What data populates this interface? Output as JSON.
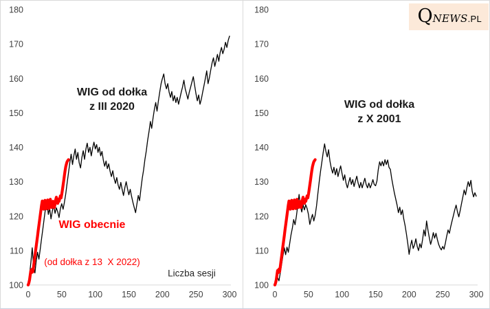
{
  "logo": {
    "q": "Q",
    "news": "NEWS",
    "pl": ".PL",
    "bg_color": "#fce9d9"
  },
  "colors": {
    "black_line": "#000000",
    "red_line": "#ff0000",
    "axis_line": "#d9d9d9",
    "tick_label": "#404040",
    "title_text": "#1a1a1a",
    "red_text": "#ff0000",
    "xaxis_label_text": "#262626"
  },
  "chart_data": [
    {
      "type": "line",
      "title_line1": "WIG od dołka",
      "title_line2": "z III 2020",
      "annotation_line1": "WIG obecnie",
      "annotation_line2": "(od dołka z 13  X 2022)",
      "xlabel": "Liczba sesji",
      "xlim": [
        0,
        300
      ],
      "ylim": [
        100,
        180
      ],
      "xticks": [
        0,
        50,
        100,
        150,
        200,
        250,
        300
      ],
      "yticks": [
        100,
        110,
        120,
        130,
        140,
        150,
        160,
        170,
        180
      ],
      "grid": false,
      "legend": "none",
      "series": [
        {
          "name": "WIG od dołka z III 2020",
          "color": "#000000",
          "width": 1.3,
          "x_start": 0,
          "x_step": 2,
          "values": [
            100,
            103,
            106.5,
            110.8,
            105.5,
            103.5,
            107,
            109.5,
            107.5,
            110.5,
            113.5,
            116.5,
            119.5,
            122.5,
            124.3,
            120.5,
            122.3,
            119.2,
            121.5,
            123.2,
            120.8,
            122.4,
            121.2,
            119.6,
            122.2,
            123.6,
            122,
            124,
            126.5,
            129.5,
            132.5,
            135.5,
            138,
            135,
            137.5,
            139.5,
            136.5,
            138.5,
            135.5,
            134,
            137,
            139,
            136.5,
            139.5,
            141.2,
            138.5,
            140,
            137.5,
            139.8,
            141.5,
            139.5,
            140.8,
            138.5,
            140,
            137.5,
            138.8,
            136.2,
            134.5,
            136,
            133.8,
            135.2,
            133,
            131.5,
            133.2,
            131,
            129.5,
            131.2,
            129,
            127.8,
            129.8,
            127.8,
            126,
            128.2,
            130,
            128,
            126.2,
            127.8,
            125.8,
            124,
            122.5,
            121,
            123.5,
            126,
            124.5,
            128,
            131,
            133.5,
            136.5,
            139,
            142,
            144.5,
            147.5,
            145.5,
            148.5,
            151,
            153,
            150.5,
            153.5,
            156,
            158.5,
            160,
            161.3,
            158.5,
            157,
            158.5,
            156,
            154.5,
            156.2,
            153.5,
            155,
            153,
            154.5,
            152.5,
            154.2,
            156,
            157.5,
            159.5,
            157,
            155.5,
            154,
            156,
            157.5,
            159,
            160.5,
            158,
            155.5,
            153.5,
            155.2,
            152.5,
            154,
            156,
            158,
            160,
            162.2,
            158.5,
            160.2,
            162.5,
            164.5,
            166,
            163.5,
            165.2,
            167,
            165,
            167.5,
            169,
            167.2,
            168.5,
            170.5,
            169,
            171,
            172.3
          ]
        },
        {
          "name": "WIG obecnie (od dołka z 13 X 2022)",
          "color": "#ff0000",
          "width": 4.2,
          "x_start": 0,
          "x_step": 1,
          "values": [
            100,
            100.6,
            101.5,
            102.8,
            104.2,
            103.6,
            104.6,
            103.8,
            105.2,
            106.8,
            108.3,
            109.8,
            111.3,
            112.8,
            114.3,
            115.8,
            117.3,
            118.8,
            120.3,
            121.8,
            123.2,
            124.4,
            123.1,
            122,
            123.6,
            124.6,
            123.2,
            122.1,
            123.9,
            124.7,
            123.3,
            122.2,
            123.7,
            124.9,
            123.7,
            122.5,
            123.1,
            124.3,
            123.1,
            122.5,
            123.5,
            124.7,
            125.5,
            124.3,
            123.7,
            124.9,
            124.3,
            125.1,
            125.9,
            125.3,
            126.3,
            127.6,
            129,
            130.4,
            131.8,
            133.2,
            134.4,
            135.2,
            135.8,
            136.1,
            136.4
          ]
        }
      ]
    },
    {
      "type": "line",
      "title_line1": "WIG od dołka",
      "title_line2": "z X 2001",
      "xlim": [
        0,
        300
      ],
      "ylim": [
        100,
        180
      ],
      "xticks": [
        0,
        50,
        100,
        150,
        200,
        250,
        300
      ],
      "yticks": [
        100,
        110,
        120,
        130,
        140,
        150,
        160,
        170,
        180
      ],
      "grid": false,
      "legend": "none",
      "series": [
        {
          "name": "WIG od dołka z X 2001",
          "color": "#000000",
          "width": 1.3,
          "x_start": 0,
          "x_step": 2,
          "values": [
            100,
            100.8,
            102.2,
            101.2,
            103.5,
            106,
            108.5,
            110.8,
            108.8,
            111,
            109.5,
            112,
            114.5,
            116.5,
            119,
            117.5,
            120,
            123,
            126.3,
            123,
            121.2,
            123.3,
            121.8,
            123.3,
            122.2,
            120.5,
            117.6,
            119.2,
            120.5,
            118.6,
            120.2,
            123,
            126.5,
            130,
            133,
            135.8,
            138.5,
            141,
            138.8,
            137.2,
            139.3,
            136,
            134,
            132.5,
            134.2,
            132,
            133.8,
            131.5,
            133.2,
            134.6,
            132.4,
            130.4,
            132,
            129.6,
            128.2,
            129.8,
            131.2,
            129.2,
            130.6,
            128.6,
            130.2,
            131.6,
            129.6,
            128.2,
            129.8,
            128.2,
            129.6,
            131,
            129.2,
            128.2,
            129.6,
            128.2,
            129.2,
            130.6,
            129.2,
            128.8,
            130.2,
            133.5,
            135.8,
            134.6,
            135.9,
            134.6,
            136.4,
            135,
            136.3,
            134.2,
            133.6,
            131,
            128.8,
            126.8,
            125,
            123.2,
            121,
            122.6,
            120.4,
            121.8,
            119.2,
            117.2,
            114.8,
            112,
            108.9,
            111.4,
            113,
            110.6,
            111.6,
            113.4,
            111.2,
            110,
            112,
            110.8,
            113.2,
            116,
            114.2,
            118.6,
            116,
            113.8,
            111.8,
            113.2,
            115.2,
            113.6,
            115,
            113.2,
            111.8,
            110.8,
            110.2,
            111.2,
            110.4,
            112.2,
            114.2,
            116,
            115,
            117,
            118.6,
            120.2,
            121.8,
            123.2,
            121.2,
            119.8,
            121.6,
            123.6,
            125.6,
            127.6,
            126.2,
            128.2,
            130,
            128.6,
            130.4,
            127.2,
            125.6,
            126.8,
            125.8
          ]
        },
        {
          "name": "WIG obecnie (od dołka z 13 X 2022)",
          "color": "#ff0000",
          "width": 4.2,
          "x_start": 0,
          "x_step": 1,
          "values": [
            100,
            100.6,
            101.5,
            102.8,
            104.2,
            103.6,
            104.6,
            103.8,
            105.2,
            106.8,
            108.3,
            109.8,
            111.3,
            112.8,
            114.3,
            115.8,
            117.3,
            118.8,
            120.3,
            121.8,
            123.2,
            124.4,
            123.1,
            122,
            123.6,
            124.6,
            123.2,
            122.1,
            123.9,
            124.7,
            123.3,
            122.2,
            123.7,
            124.9,
            123.7,
            122.5,
            123.1,
            124.3,
            123.1,
            122.5,
            123.5,
            124.7,
            125.5,
            124.3,
            123.7,
            124.9,
            124.3,
            125.1,
            125.9,
            125.3,
            126.3,
            127.6,
            129,
            130.4,
            131.8,
            133.2,
            134.4,
            135.2,
            135.8,
            136.1,
            136.4
          ]
        }
      ]
    }
  ]
}
